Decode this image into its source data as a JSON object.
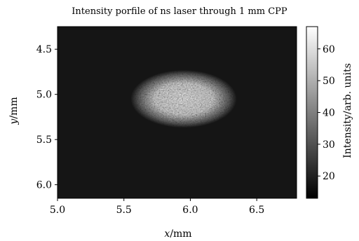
{
  "chart_data": {
    "type": "heatmap",
    "title": "Intensity porfile of ns laser through 1 mm CPP",
    "xlabel_var": "x",
    "xlabel_unit": "/mm",
    "ylabel_var": "y",
    "ylabel_unit": "/mm",
    "xlim": [
      5.0,
      6.8
    ],
    "ylim": [
      6.15,
      4.25
    ],
    "x_ticks": [
      5.0,
      5.5,
      6.0,
      6.5
    ],
    "x_tick_labels": [
      "5.0",
      "5.5",
      "6.0",
      "6.5"
    ],
    "y_ticks": [
      4.5,
      5.0,
      5.5,
      6.0
    ],
    "y_tick_labels": [
      "4.5",
      "5.0",
      "5.5",
      "6.0"
    ],
    "colorbar": {
      "label": "Intensity/arb. units",
      "range": [
        13,
        67
      ],
      "ticks": [
        20,
        30,
        40,
        50,
        60
      ],
      "tick_labels": [
        "20",
        "30",
        "40",
        "50",
        "60"
      ],
      "colormap": "gray"
    },
    "spot": {
      "center_x": 5.95,
      "center_y": 5.05,
      "radius_x": 0.4,
      "radius_y": 0.32,
      "peak_intensity": 60,
      "background_intensity": 18
    }
  }
}
